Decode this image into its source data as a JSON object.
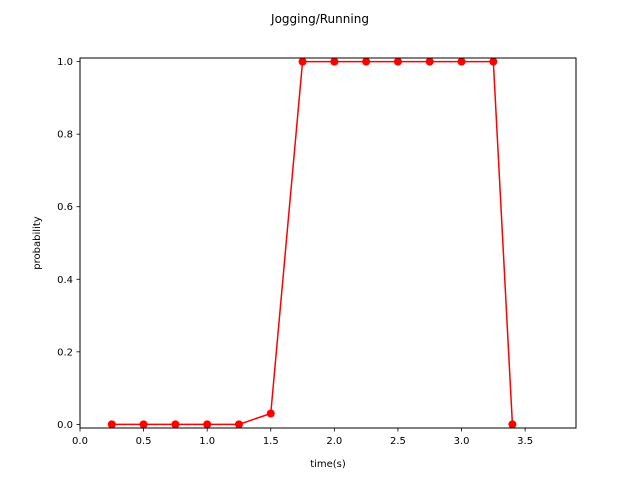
{
  "chart_data": {
    "type": "line",
    "title": "Jogging/Running",
    "xlabel": "time(s)",
    "ylabel": "probability",
    "xlim": [
      0.0,
      3.9
    ],
    "ylim": [
      -0.01,
      1.01
    ],
    "xticks": [
      0.0,
      0.5,
      1.0,
      1.5,
      2.0,
      2.5,
      3.0,
      3.5
    ],
    "xtick_labels": [
      "0.0",
      "0.5",
      "1.0",
      "1.5",
      "2.0",
      "2.5",
      "3.0",
      "3.5"
    ],
    "yticks": [
      0.0,
      0.2,
      0.4,
      0.6,
      0.8,
      1.0
    ],
    "ytick_labels": [
      "0.0",
      "0.2",
      "0.4",
      "0.6",
      "0.8",
      "1.0"
    ],
    "grid": false,
    "series": [
      {
        "color": "#ff0000",
        "marker": "circle",
        "x": [
          0.25,
          0.5,
          0.75,
          1.0,
          1.25,
          1.5,
          1.75,
          2.0,
          2.25,
          2.5,
          2.75,
          3.0,
          3.25,
          3.4
        ],
        "y": [
          0.0,
          0.0,
          0.0,
          0.0,
          0.0,
          0.03,
          1.0,
          1.0,
          1.0,
          1.0,
          1.0,
          1.0,
          1.0,
          0.0
        ]
      }
    ]
  }
}
